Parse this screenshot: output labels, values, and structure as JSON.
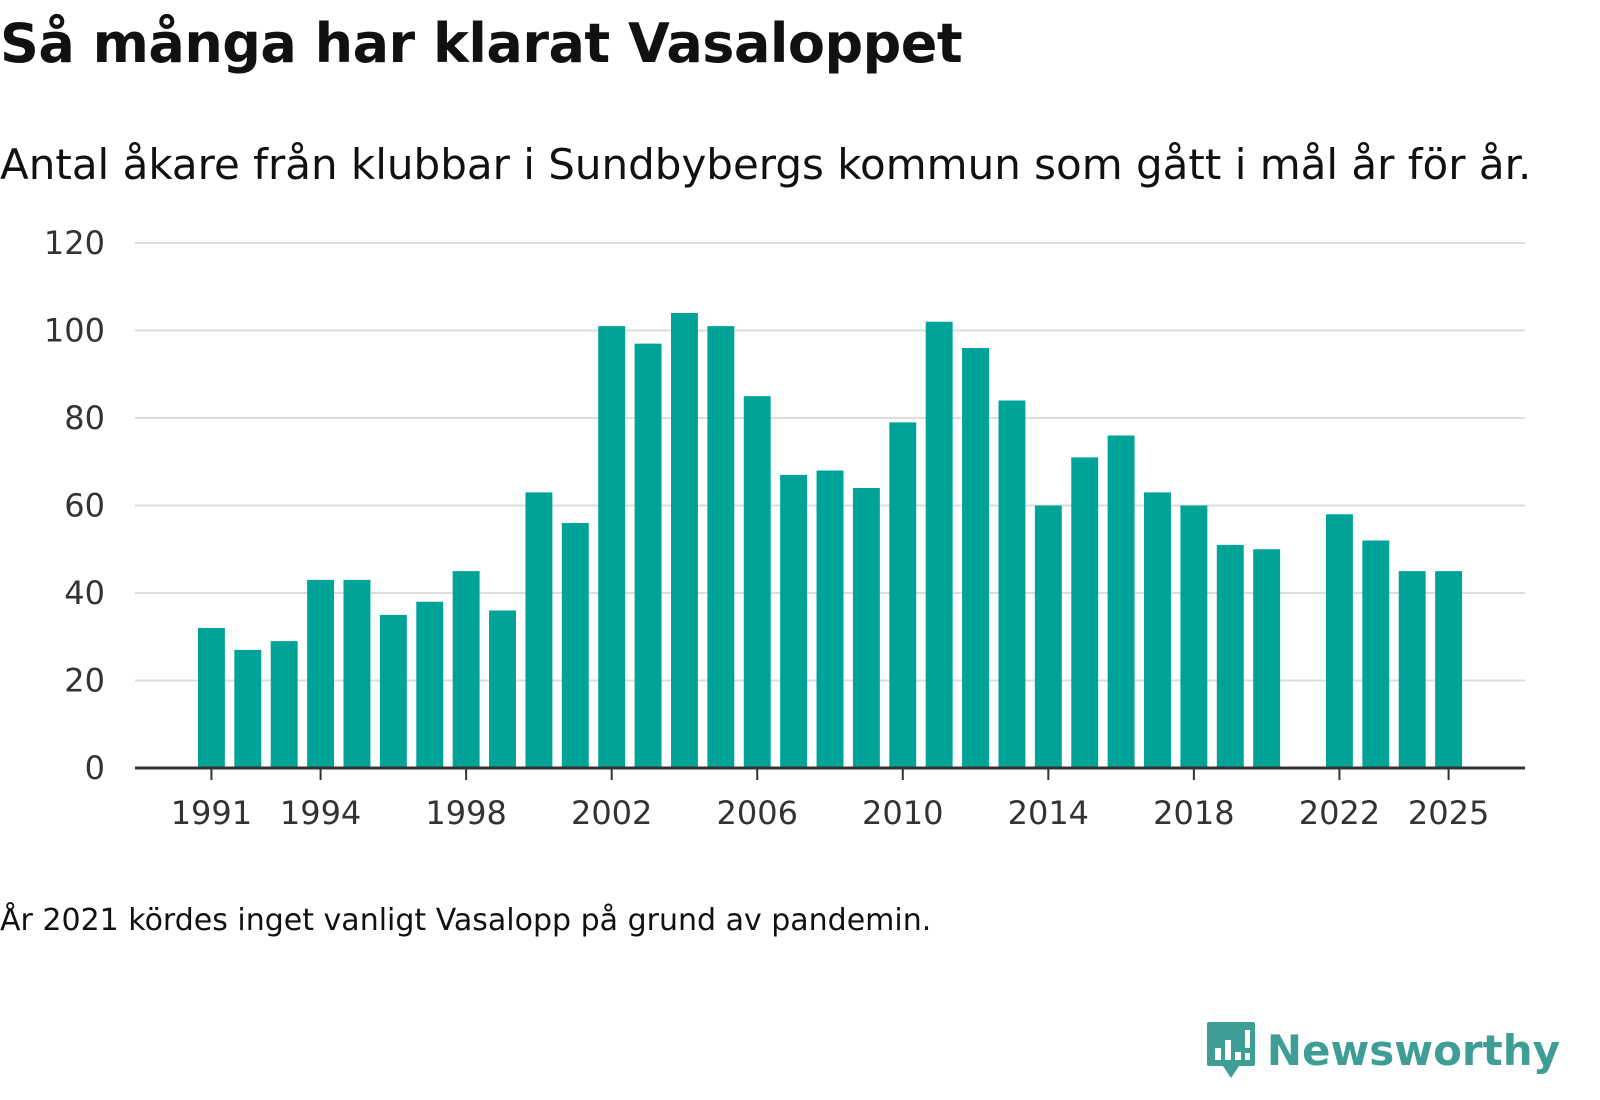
{
  "title": "Så många har klarat Vasaloppet",
  "subtitle": "Antal åkare från klubbar i Sundbybergs kommun som gått i mål år för år.",
  "note": "År 2021 kördes inget vanligt Vasalopp på grund av pandemin.",
  "brand": {
    "name": "Newsworthy",
    "icon": "newsworthy-logo-icon",
    "color": "#3e9e96"
  },
  "chart_data": {
    "type": "bar",
    "title": "Så många har klarat Vasaloppet",
    "subtitle": "Antal åkare från klubbar i Sundbybergs kommun som gått i mål år för år.",
    "xlabel": "",
    "ylabel": "",
    "ylim": [
      0,
      120
    ],
    "yticks": [
      0,
      20,
      40,
      60,
      80,
      100,
      120
    ],
    "xticks": [
      1991,
      1994,
      1998,
      2002,
      2006,
      2010,
      2014,
      2018,
      2022,
      2025
    ],
    "xlim": [
      1988.9,
      2027.1
    ],
    "grid": true,
    "bar_color": "#00a398",
    "categories": [
      1991,
      1992,
      1993,
      1994,
      1995,
      1996,
      1997,
      1998,
      1999,
      2000,
      2001,
      2002,
      2003,
      2004,
      2005,
      2006,
      2007,
      2008,
      2009,
      2010,
      2011,
      2012,
      2013,
      2014,
      2015,
      2016,
      2017,
      2018,
      2019,
      2020,
      2021,
      2022,
      2023,
      2024,
      2025
    ],
    "values": [
      32,
      27,
      29,
      43,
      43,
      35,
      38,
      45,
      36,
      63,
      56,
      101,
      97,
      104,
      101,
      85,
      67,
      68,
      64,
      79,
      102,
      96,
      84,
      60,
      71,
      76,
      63,
      60,
      51,
      50,
      null,
      58,
      52,
      45,
      45
    ]
  }
}
